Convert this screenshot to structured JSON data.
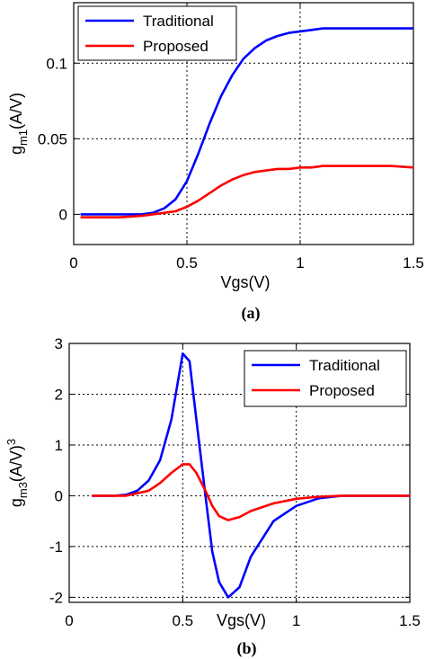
{
  "chart_data": [
    {
      "type": "line",
      "caption": "(a)",
      "xlabel": "Vgs(V)",
      "ylabel": "g",
      "ylabel_sub": "m1",
      "ylabel_suffix": "(A/V)",
      "xlim": [
        0,
        1.5
      ],
      "ylim": [
        -0.02,
        0.14
      ],
      "xticks": [
        0,
        0.5,
        1,
        1.5
      ],
      "xtick_labels": [
        "0",
        "0.5",
        "1",
        "1.5"
      ],
      "yticks": [
        0,
        0.05,
        0.1
      ],
      "ytick_labels": [
        "0",
        "0.05",
        "0.1"
      ],
      "grid": true,
      "legend_position": "top-left",
      "series": [
        {
          "name": "Traditional",
          "color": "#0000ff",
          "x": [
            0.03,
            0.1,
            0.2,
            0.3,
            0.35,
            0.4,
            0.45,
            0.5,
            0.55,
            0.6,
            0.65,
            0.7,
            0.75,
            0.8,
            0.85,
            0.9,
            0.95,
            1.0,
            1.05,
            1.1,
            1.2,
            1.3,
            1.4,
            1.5
          ],
          "values": [
            0,
            0,
            0,
            0,
            0.001,
            0.004,
            0.01,
            0.022,
            0.04,
            0.06,
            0.078,
            0.092,
            0.103,
            0.11,
            0.115,
            0.118,
            0.12,
            0.121,
            0.122,
            0.123,
            0.123,
            0.123,
            0.123,
            0.123
          ]
        },
        {
          "name": "Proposed",
          "color": "#ff0000",
          "x": [
            0.03,
            0.1,
            0.2,
            0.3,
            0.35,
            0.4,
            0.45,
            0.5,
            0.55,
            0.6,
            0.65,
            0.7,
            0.75,
            0.8,
            0.85,
            0.9,
            0.95,
            1.0,
            1.05,
            1.1,
            1.2,
            1.3,
            1.4,
            1.5
          ],
          "values": [
            -0.002,
            -0.002,
            -0.002,
            -0.001,
            0,
            0.001,
            0.002,
            0.005,
            0.009,
            0.014,
            0.019,
            0.023,
            0.026,
            0.028,
            0.029,
            0.03,
            0.03,
            0.031,
            0.031,
            0.032,
            0.032,
            0.032,
            0.032,
            0.031
          ]
        }
      ]
    },
    {
      "type": "line",
      "caption": "(b)",
      "xlabel": "Vgs(V)",
      "ylabel": "g",
      "ylabel_sub": "m3",
      "ylabel_suffix": "(A/V)",
      "ylabel_sup": "3",
      "xlim": [
        0,
        1.5
      ],
      "ylim": [
        -2.1,
        3
      ],
      "xticks": [
        0,
        0.5,
        1,
        1.5
      ],
      "xtick_labels": [
        "0",
        "0.5",
        "1",
        "1.5"
      ],
      "yticks": [
        -2,
        -1,
        0,
        1,
        2,
        3
      ],
      "ytick_labels": [
        "-2",
        "-1",
        "0",
        "1",
        "2",
        "3"
      ],
      "grid": true,
      "legend_position": "top-right",
      "series": [
        {
          "name": "Traditional",
          "color": "#0000ff",
          "x": [
            0.1,
            0.2,
            0.25,
            0.3,
            0.35,
            0.4,
            0.45,
            0.5,
            0.53,
            0.56,
            0.6,
            0.63,
            0.66,
            0.7,
            0.75,
            0.8,
            0.9,
            1.0,
            1.1,
            1.2,
            1.3,
            1.4,
            1.5
          ],
          "values": [
            0,
            0,
            0.02,
            0.1,
            0.3,
            0.7,
            1.5,
            2.8,
            2.65,
            1.5,
            0,
            -1.1,
            -1.7,
            -2.0,
            -1.8,
            -1.2,
            -0.5,
            -0.2,
            -0.05,
            0,
            0,
            0,
            0
          ]
        },
        {
          "name": "Proposed",
          "color": "#ff0000",
          "x": [
            0.1,
            0.2,
            0.25,
            0.3,
            0.35,
            0.4,
            0.45,
            0.5,
            0.53,
            0.56,
            0.6,
            0.63,
            0.66,
            0.7,
            0.75,
            0.8,
            0.9,
            1.0,
            1.1,
            1.2,
            1.3,
            1.4,
            1.5
          ],
          "values": [
            0,
            0,
            0,
            0.05,
            0.1,
            0.25,
            0.45,
            0.62,
            0.62,
            0.45,
            0.1,
            -0.2,
            -0.4,
            -0.48,
            -0.42,
            -0.3,
            -0.15,
            -0.06,
            -0.02,
            0,
            0,
            0,
            0
          ]
        }
      ]
    }
  ]
}
